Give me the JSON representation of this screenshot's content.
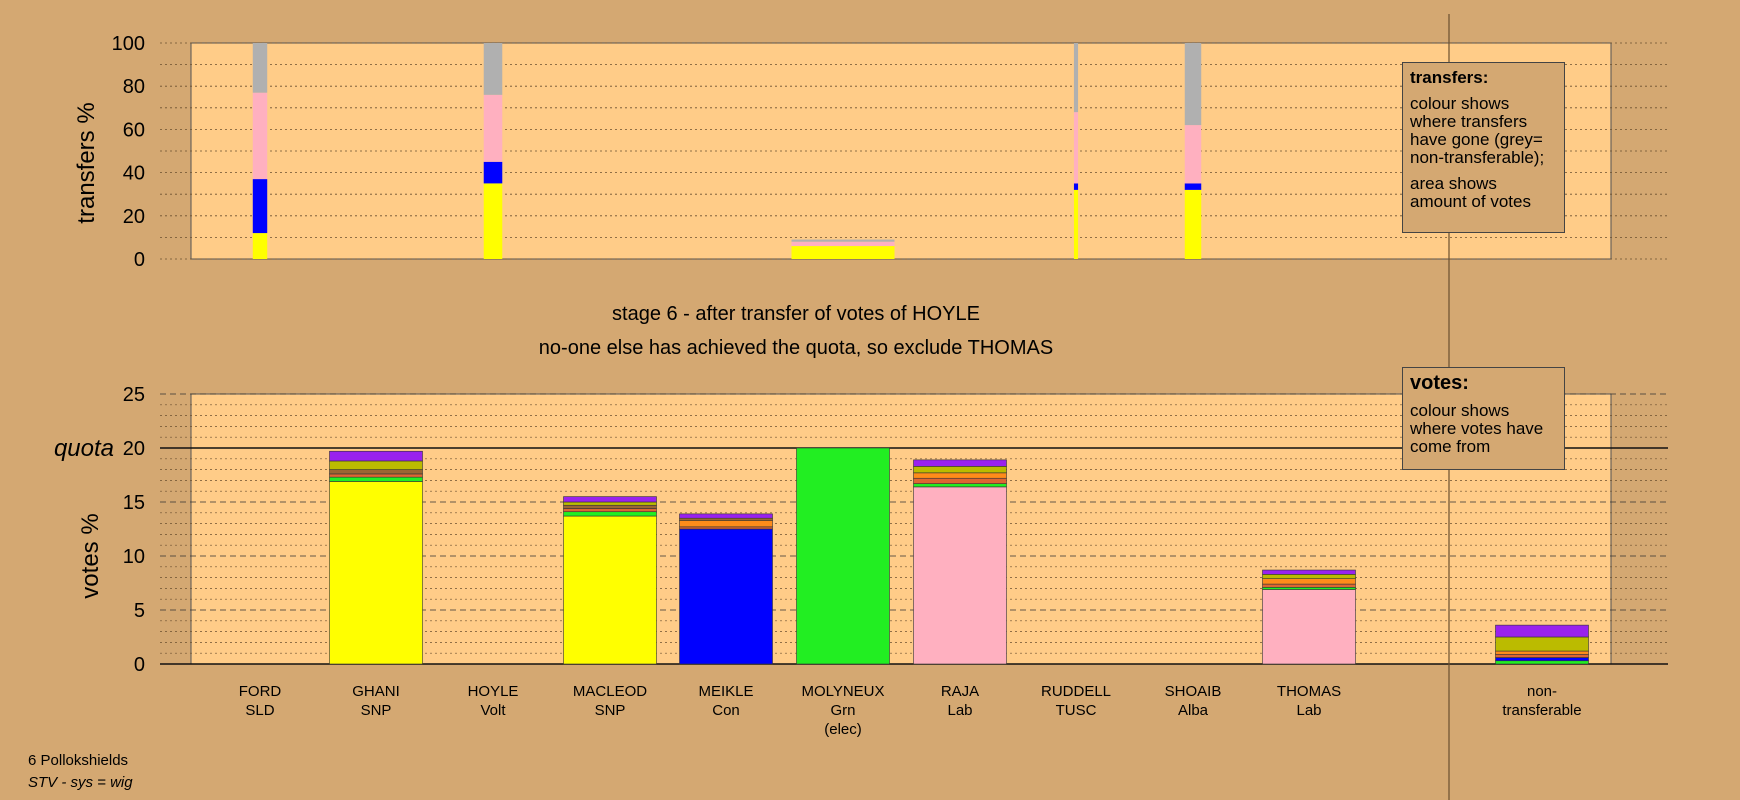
{
  "chart_data": [
    {
      "type": "bar",
      "panel": "transfers",
      "ylabel": "transfers %",
      "ylim": [
        0,
        100
      ],
      "yticks": [
        0,
        20,
        40,
        60,
        80,
        100
      ],
      "grid": true,
      "note": "bar width shows amount of votes transferred",
      "categories": [
        "FORD",
        "GHANI",
        "HOYLE",
        "MACLEOD",
        "MEIKLE",
        "MOLYNEUX",
        "RAJA",
        "RUDDELL",
        "SHOAIB",
        "THOMAS"
      ],
      "bars": [
        {
          "candidate": "FORD",
          "width_share": 0.14,
          "segments": [
            {
              "value": 12,
              "color": "#ffff00"
            },
            {
              "value": 25,
              "color": "#0000ff"
            },
            {
              "value": 40,
              "color": "#ffb0c0"
            },
            {
              "value": 23,
              "color": "#b0b0b0"
            }
          ]
        },
        {
          "candidate": "HOYLE",
          "width_share": 0.18,
          "segments": [
            {
              "value": 35,
              "color": "#ffff00"
            },
            {
              "value": 10,
              "color": "#0000ff"
            },
            {
              "value": 31,
              "color": "#ffb0c0"
            },
            {
              "value": 24,
              "color": "#b0b0b0"
            }
          ]
        },
        {
          "candidate": "MOLYNEUX",
          "width_share": 1.0,
          "segments": [
            {
              "value": 6,
              "color": "#ffff00"
            },
            {
              "value": 2,
              "color": "#ffb0c0"
            },
            {
              "value": 1,
              "color": "#b0b0b0"
            }
          ]
        },
        {
          "candidate": "RUDDELL",
          "width_share": 0.04,
          "segments": [
            {
              "value": 32,
              "color": "#ffff00"
            },
            {
              "value": 3,
              "color": "#0000ff"
            },
            {
              "value": 33,
              "color": "#ffb0c0"
            },
            {
              "value": 32,
              "color": "#b0b0b0"
            }
          ]
        },
        {
          "candidate": "SHOAIB",
          "width_share": 0.16,
          "segments": [
            {
              "value": 32,
              "color": "#ffff00"
            },
            {
              "value": 3,
              "color": "#0000ff"
            },
            {
              "value": 27,
              "color": "#ffb0c0"
            },
            {
              "value": 38,
              "color": "#b0b0b0"
            }
          ]
        }
      ]
    },
    {
      "type": "bar",
      "panel": "votes",
      "ylabel": "votes %",
      "ylim": [
        0,
        25
      ],
      "yticks": [
        0,
        5,
        10,
        15,
        20,
        25
      ],
      "quota": 20,
      "quota_label": "quota",
      "grid": true,
      "categories": [
        "FORD",
        "GHANI",
        "HOYLE",
        "MACLEOD",
        "MEIKLE",
        "MOLYNEUX",
        "RAJA",
        "RUDDELL",
        "SHOAIB",
        "THOMAS",
        "non-transferable"
      ],
      "bars": [
        {
          "candidate": "GHANI",
          "segments": [
            {
              "value": 16.9,
              "color": "#ffff00"
            },
            {
              "value": 0.4,
              "color": "#22ee22"
            },
            {
              "value": 0.3,
              "color": "#dd6633"
            },
            {
              "value": 0.4,
              "color": "#996633"
            },
            {
              "value": 0.8,
              "color": "#bbbb00"
            },
            {
              "value": 0.9,
              "color": "#9922ee"
            }
          ]
        },
        {
          "candidate": "MACLEOD",
          "segments": [
            {
              "value": 13.7,
              "color": "#ffff00"
            },
            {
              "value": 0.4,
              "color": "#22ee22"
            },
            {
              "value": 0.3,
              "color": "#dd6633"
            },
            {
              "value": 0.3,
              "color": "#996633"
            },
            {
              "value": 0.3,
              "color": "#bbbb00"
            },
            {
              "value": 0.5,
              "color": "#9922ee"
            }
          ]
        },
        {
          "candidate": "MEIKLE",
          "segments": [
            {
              "value": 12.5,
              "color": "#0000ff"
            },
            {
              "value": 0.2,
              "color": "#dd6633"
            },
            {
              "value": 0.6,
              "color": "#ff8c1a"
            },
            {
              "value": 0.2,
              "color": "#996633"
            },
            {
              "value": 0.4,
              "color": "#9922ee"
            }
          ]
        },
        {
          "candidate": "MOLYNEUX",
          "segments": [
            {
              "value": 20.0,
              "color": "#22ee22"
            }
          ]
        },
        {
          "candidate": "RAJA",
          "segments": [
            {
              "value": 16.4,
              "color": "#ffb0c0"
            },
            {
              "value": 0.3,
              "color": "#22ee22"
            },
            {
              "value": 0.5,
              "color": "#dd6633"
            },
            {
              "value": 0.5,
              "color": "#ff8c1a"
            },
            {
              "value": 0.6,
              "color": "#bbbb00"
            },
            {
              "value": 0.6,
              "color": "#9922ee"
            }
          ]
        },
        {
          "candidate": "THOMAS",
          "segments": [
            {
              "value": 6.9,
              "color": "#ffb0c0"
            },
            {
              "value": 0.2,
              "color": "#22ee22"
            },
            {
              "value": 0.3,
              "color": "#dd6633"
            },
            {
              "value": 0.5,
              "color": "#ff8c1a"
            },
            {
              "value": 0.4,
              "color": "#bbbb00"
            },
            {
              "value": 0.4,
              "color": "#9922ee"
            }
          ]
        },
        {
          "candidate": "non-transferable",
          "segments": [
            {
              "value": 0.3,
              "color": "#22ee22"
            },
            {
              "value": 0.3,
              "color": "#0000ff"
            },
            {
              "value": 0.3,
              "color": "#dd6633"
            },
            {
              "value": 0.3,
              "color": "#ff8c1a"
            },
            {
              "value": 1.3,
              "color": "#bbbb00"
            },
            {
              "value": 1.1,
              "color": "#9922ee"
            }
          ]
        }
      ]
    }
  ],
  "candidates": [
    {
      "name": "FORD",
      "party": "SLD"
    },
    {
      "name": "GHANI",
      "party": "SNP"
    },
    {
      "name": "HOYLE",
      "party": "Volt"
    },
    {
      "name": "MACLEOD",
      "party": "SNP"
    },
    {
      "name": "MEIKLE",
      "party": "Con"
    },
    {
      "name": "MOLYNEUX",
      "party": "Grn",
      "status": "(elec)"
    },
    {
      "name": "RAJA",
      "party": "Lab"
    },
    {
      "name": "RUDDELL",
      "party": "TUSC"
    },
    {
      "name": "SHOAIB",
      "party": "Alba"
    },
    {
      "name": "THOMAS",
      "party": "Lab"
    }
  ],
  "nontransferable_label": [
    "non-",
    "transferable"
  ],
  "stage_title": "stage 6 - after transfer of votes of HOYLE",
  "stage_subtitle": "no-one else has achieved the quota, so exclude THOMAS",
  "legend_transfers": {
    "title": "transfers:",
    "lines": [
      "colour shows where transfers have gone (grey= non-transferable);",
      "area shows amount of votes"
    ]
  },
  "legend_votes": {
    "title": "votes:",
    "lines": [
      "colour shows where votes have come from"
    ]
  },
  "footer": {
    "ward": "6 Pollokshields",
    "system": "STV - sys = wig"
  },
  "colors": {
    "background": "#d4a872",
    "plot_area": "#ffcc88"
  }
}
